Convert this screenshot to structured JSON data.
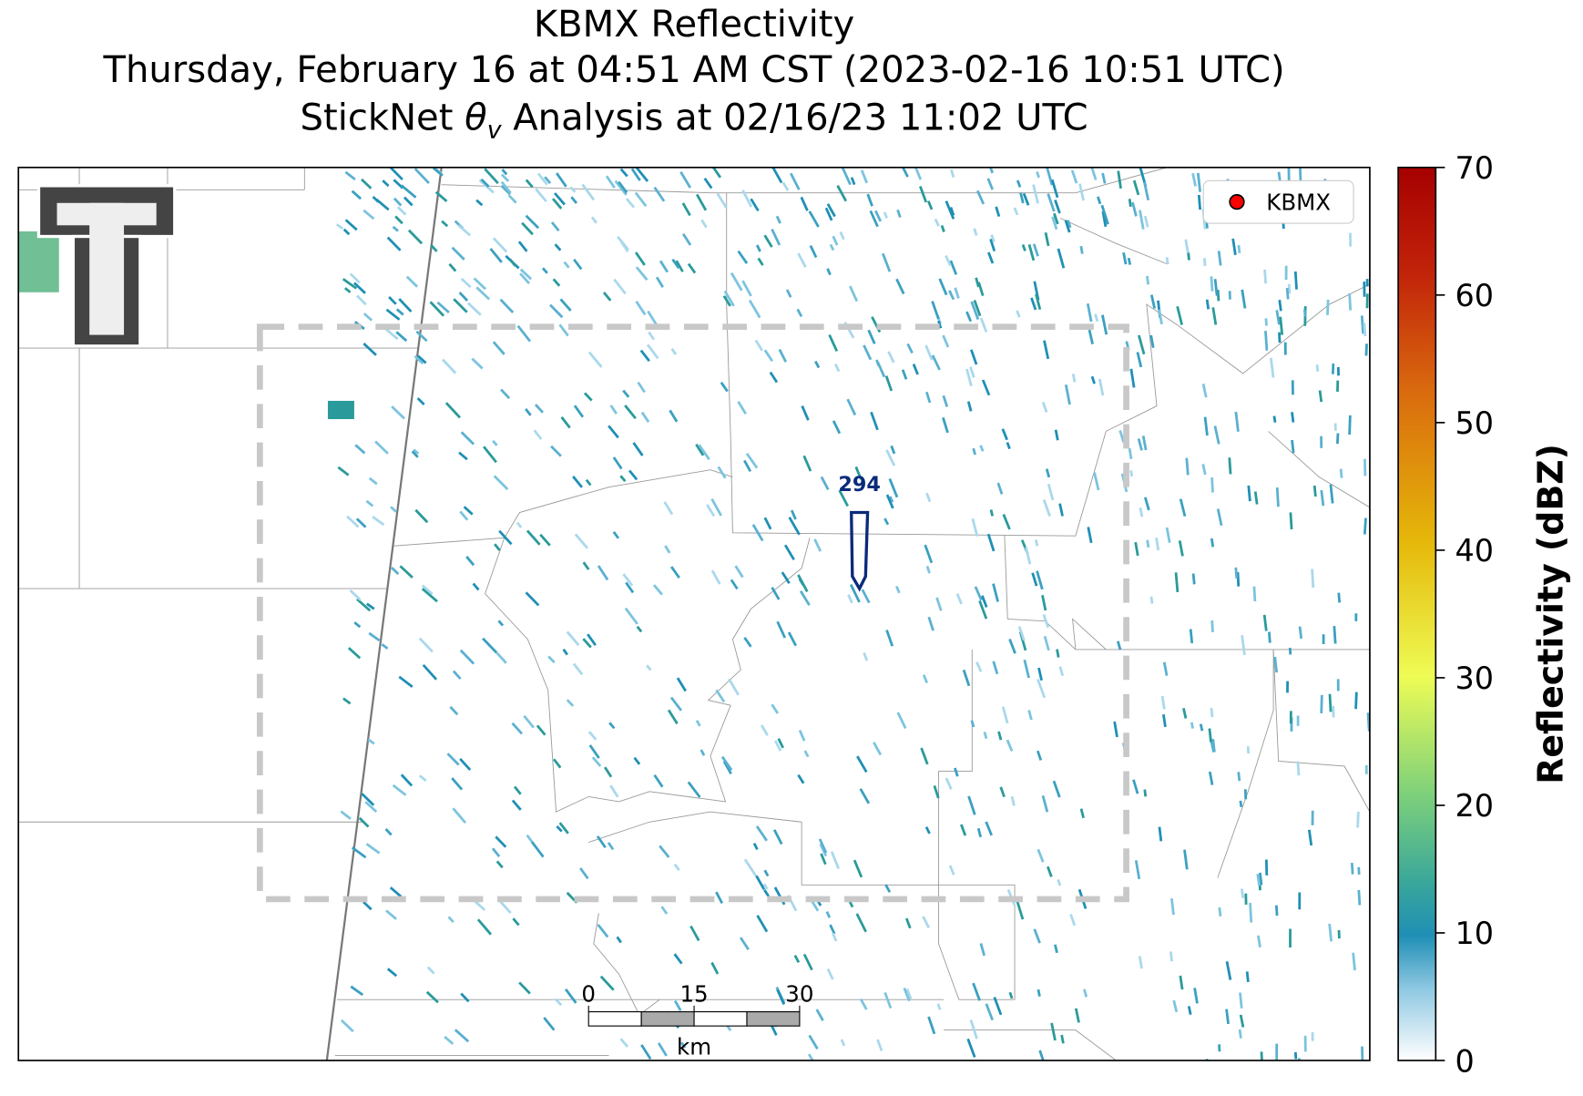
{
  "map": {
    "title": "KBMX Reflectivity",
    "subtitle": "Thursday, February 16 at 04:51 AM CST (2023-02-16 10:51 UTC)",
    "analysis_title": {
      "prefix": "StickNet ",
      "symbol": "θ",
      "subscript": "v",
      "suffix": " Analysis at 02/16/23 11:02 UTC"
    },
    "legend": {
      "label": "KBMX",
      "color": "#ff0000"
    },
    "contour": {
      "label": "294",
      "color": "#0a2a7a"
    },
    "scale_bar": {
      "ticks": [
        0,
        15,
        30
      ],
      "unit": "km"
    },
    "colorbar": {
      "label": "Reflectivity (dBZ)",
      "lim": [
        0,
        70
      ],
      "ticks": [
        0,
        10,
        20,
        30,
        40,
        50,
        60,
        70
      ]
    }
  }
}
